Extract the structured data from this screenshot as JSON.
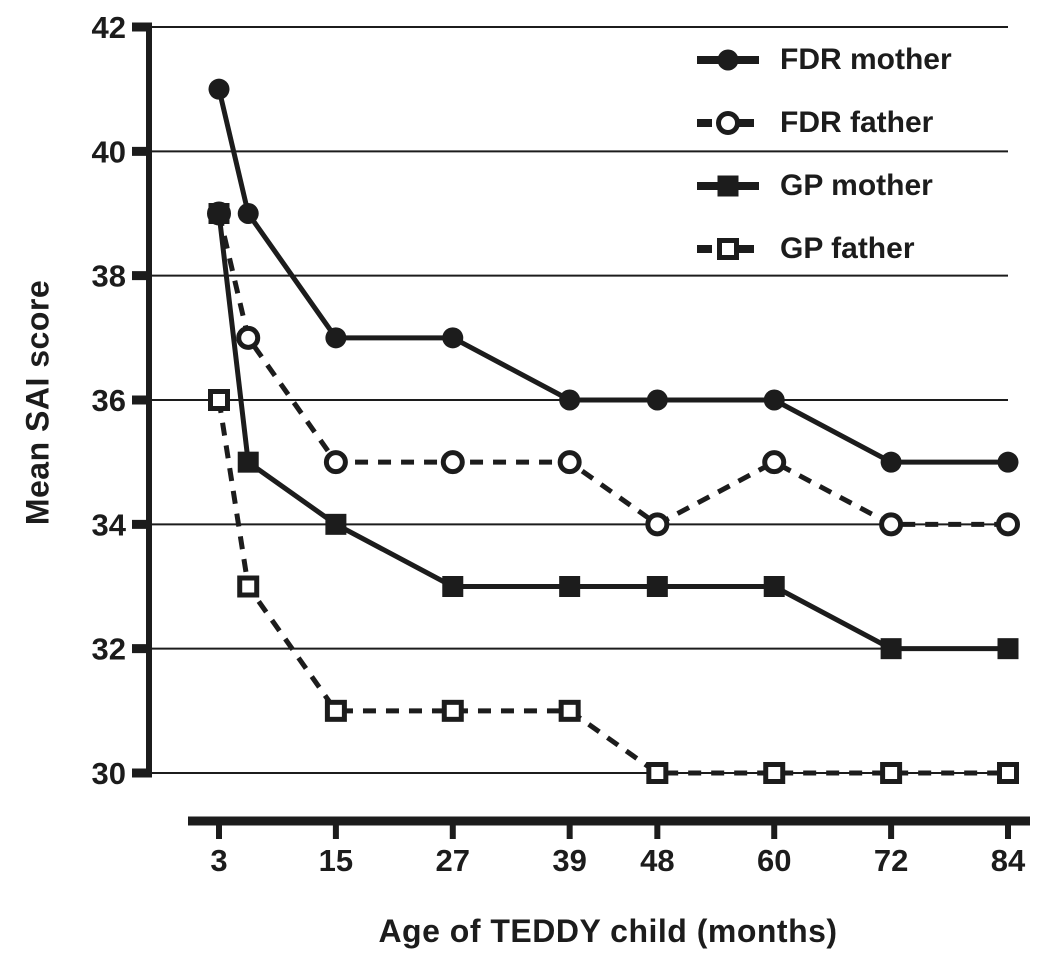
{
  "colors": {
    "ink": "#1c1c1c",
    "background": "#ffffff"
  },
  "chart_data": {
    "type": "line",
    "title": "",
    "xlabel": "Age of TEDDY child (months)",
    "ylabel": "Mean SAI score",
    "x": [
      3,
      6,
      15,
      27,
      39,
      48,
      60,
      72,
      84
    ],
    "x_tick_labels": [
      "3",
      "15",
      "27",
      "39",
      "48",
      "60",
      "72",
      "84"
    ],
    "x_tick_values": [
      3,
      15,
      27,
      39,
      48,
      60,
      72,
      84
    ],
    "xlim": [
      3,
      84
    ],
    "y_ticks": [
      30,
      32,
      34,
      36,
      38,
      40,
      42
    ],
    "ylim": [
      30,
      42
    ],
    "grid": "horizontal",
    "legend_position": "top-right",
    "series": [
      {
        "name": "FDR mother",
        "marker": "filled-circle",
        "line": "solid",
        "values": [
          41,
          39,
          37,
          37,
          36,
          36,
          36,
          35,
          35
        ]
      },
      {
        "name": "FDR father",
        "marker": "open-circle",
        "line": "dashed",
        "values": [
          39,
          37,
          35,
          35,
          35,
          34,
          35,
          34,
          34
        ]
      },
      {
        "name": "GP mother",
        "marker": "filled-square",
        "line": "solid",
        "values": [
          39,
          35,
          34,
          33,
          33,
          33,
          33,
          32,
          32
        ]
      },
      {
        "name": "GP father",
        "marker": "open-square",
        "line": "dashed",
        "values": [
          36,
          33,
          31,
          31,
          31,
          30,
          30,
          30,
          30
        ]
      }
    ]
  }
}
